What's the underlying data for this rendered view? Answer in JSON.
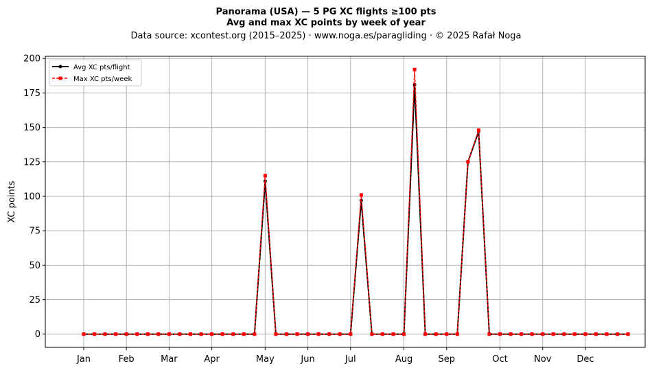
{
  "chart_data": {
    "type": "line",
    "title": "Panorama (USA)  —  5 PG XC flights ≥100 pts",
    "subtitle": "Avg and max XC points by week of year",
    "source_line": "Data source: xcontest.org (2015–2025)  ·  www.noga.es/paragliding  ·  © 2025 Rafał Noga",
    "xlabel": "",
    "ylabel": "XC points",
    "ylim": [
      -9.6,
      201.6
    ],
    "xlim": [
      -2.6,
      53.6
    ],
    "yticks": [
      0,
      25,
      50,
      75,
      100,
      125,
      150,
      175,
      200
    ],
    "xticks": [
      {
        "week": 1,
        "label": "Jan"
      },
      {
        "week": 5,
        "label": "Feb"
      },
      {
        "week": 9,
        "label": "Mar"
      },
      {
        "week": 13,
        "label": "Apr"
      },
      {
        "week": 18,
        "label": "May"
      },
      {
        "week": 22,
        "label": "Jun"
      },
      {
        "week": 26,
        "label": "Jul"
      },
      {
        "week": 31,
        "label": "Aug"
      },
      {
        "week": 35,
        "label": "Sep"
      },
      {
        "week": 40,
        "label": "Oct"
      },
      {
        "week": 44,
        "label": "Nov"
      },
      {
        "week": 48,
        "label": "Dec"
      }
    ],
    "grid": true,
    "legend": "top-left",
    "x": [
      1,
      2,
      3,
      4,
      5,
      6,
      7,
      8,
      9,
      10,
      11,
      12,
      13,
      14,
      15,
      16,
      17,
      18,
      19,
      20,
      21,
      22,
      23,
      24,
      25,
      26,
      27,
      28,
      29,
      30,
      31,
      32,
      33,
      34,
      35,
      36,
      37,
      38,
      39,
      40,
      41,
      42,
      43,
      44,
      45,
      46,
      47,
      48,
      49,
      50,
      51,
      52
    ],
    "series": [
      {
        "name": "Avg XC pts/flight",
        "color": "#000000",
        "style": "solid",
        "marker": "circle",
        "values": [
          0,
          0,
          0,
          0,
          0,
          0,
          0,
          0,
          0,
          0,
          0,
          0,
          0,
          0,
          0,
          0,
          0,
          111,
          0,
          0,
          0,
          0,
          0,
          0,
          0,
          0,
          97,
          0,
          0,
          0,
          0,
          181,
          0,
          0,
          0,
          0,
          125,
          147,
          0,
          0,
          0,
          0,
          0,
          0,
          0,
          0,
          0,
          0,
          0,
          0,
          0,
          0
        ]
      },
      {
        "name": "Max XC pts/week",
        "color": "#ff0000",
        "style": "dashed",
        "marker": "square",
        "values": [
          0,
          0,
          0,
          0,
          0,
          0,
          0,
          0,
          0,
          0,
          0,
          0,
          0,
          0,
          0,
          0,
          0,
          115,
          0,
          0,
          0,
          0,
          0,
          0,
          0,
          0,
          101,
          0,
          0,
          0,
          0,
          192,
          0,
          0,
          0,
          0,
          125,
          148,
          0,
          0,
          0,
          0,
          0,
          0,
          0,
          0,
          0,
          0,
          0,
          0,
          0,
          0
        ]
      }
    ]
  }
}
